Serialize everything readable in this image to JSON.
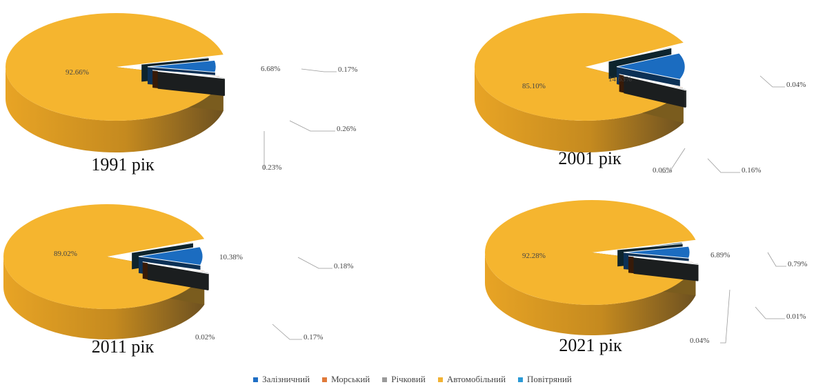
{
  "chart_data": [
    {
      "type": "pie",
      "title": "1991 рік",
      "categories": [
        "Залізничний",
        "Морський",
        "Річковий",
        "Автомобільний",
        "Повітряний"
      ],
      "values": [
        6.68,
        0.26,
        0.23,
        92.66,
        0.17
      ],
      "labels": [
        "6.68%",
        "0.26%",
        "0.23%",
        "92.66%",
        "0.17%"
      ]
    },
    {
      "type": "pie",
      "title": "2001 рік",
      "categories": [
        "Залізничний",
        "Морський",
        "Річковий",
        "Автомобільний",
        "Повітряний"
      ],
      "values": [
        14.63,
        0.16,
        0.06,
        85.1,
        0.04
      ],
      "labels": [
        "14.63%",
        "0.16%",
        "0.06%",
        "85.10%",
        "0.04%"
      ]
    },
    {
      "type": "pie",
      "title": "2011 рік",
      "categories": [
        "Залізничний",
        "Морський",
        "Річковий",
        "Автомобільний",
        "Повітряний"
      ],
      "values": [
        10.38,
        0.17,
        0.02,
        89.02,
        0.18
      ],
      "labels": [
        "10.38%",
        "0.17%",
        "0.02%",
        "89.02%",
        "0.18%"
      ]
    },
    {
      "type": "pie",
      "title": "2021 рік",
      "categories": [
        "Залізничний",
        "Морський",
        "Річковий",
        "Автомобільний",
        "Повітряний"
      ],
      "values": [
        6.89,
        0.01,
        0.04,
        92.28,
        0.79
      ],
      "labels": [
        "6.89%",
        "0.01%",
        "0.04%",
        "92.28%",
        "0.79%"
      ]
    }
  ],
  "legend": {
    "items": [
      {
        "label": "Залізничний",
        "color": "#1f6fc5"
      },
      {
        "label": "Морський",
        "color": "#e07a3a"
      },
      {
        "label": "Річковий",
        "color": "#9a9a9a"
      },
      {
        "label": "Автомобільний",
        "color": "#f2b233"
      },
      {
        "label": "Повітряний",
        "color": "#2b9ad6"
      }
    ],
    "position": "bottom"
  },
  "colors": {
    "Залізничний": "#1b6cc0",
    "Морський": "#7a3a12",
    "Річковий": "#3b4345",
    "Автомобільний": "#f5b52f",
    "Повітряний": "#1d4f63"
  }
}
